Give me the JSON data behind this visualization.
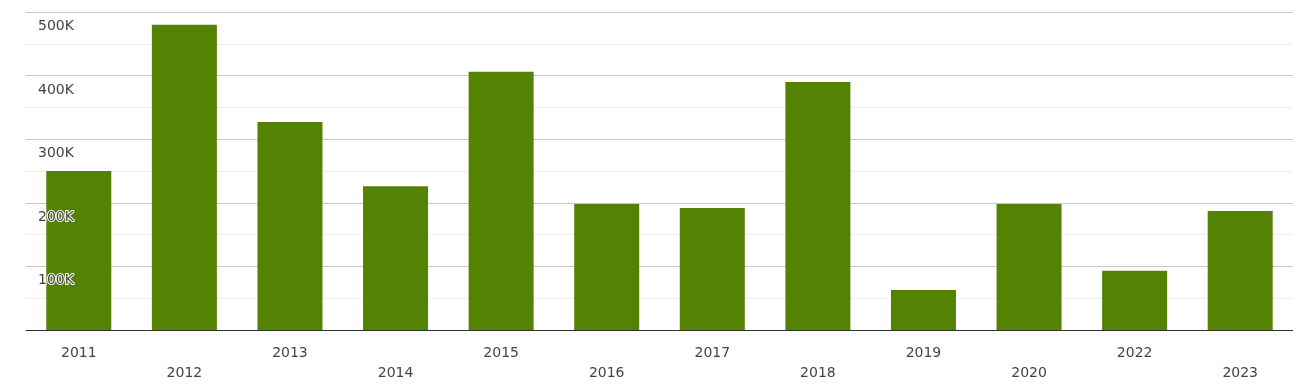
{
  "chart_data": {
    "type": "bar",
    "categories": [
      "2011",
      "2012",
      "2013",
      "2014",
      "2015",
      "2016",
      "2017",
      "2018",
      "2019",
      "2020",
      "2022",
      "2023"
    ],
    "values": [
      250000,
      480000,
      327000,
      226000,
      406000,
      198000,
      192000,
      390000,
      63000,
      198000,
      93000,
      187000
    ],
    "color": "#548203",
    "ylim": [
      0,
      500000
    ],
    "yticks": [
      {
        "value": 0,
        "label": null
      },
      {
        "value": 100000,
        "label": "100K"
      },
      {
        "value": 200000,
        "label": "200K"
      },
      {
        "value": 300000,
        "label": "300K"
      },
      {
        "value": 400000,
        "label": "400K"
      },
      {
        "value": 500000,
        "label": "500K"
      }
    ],
    "grid": "y"
  }
}
